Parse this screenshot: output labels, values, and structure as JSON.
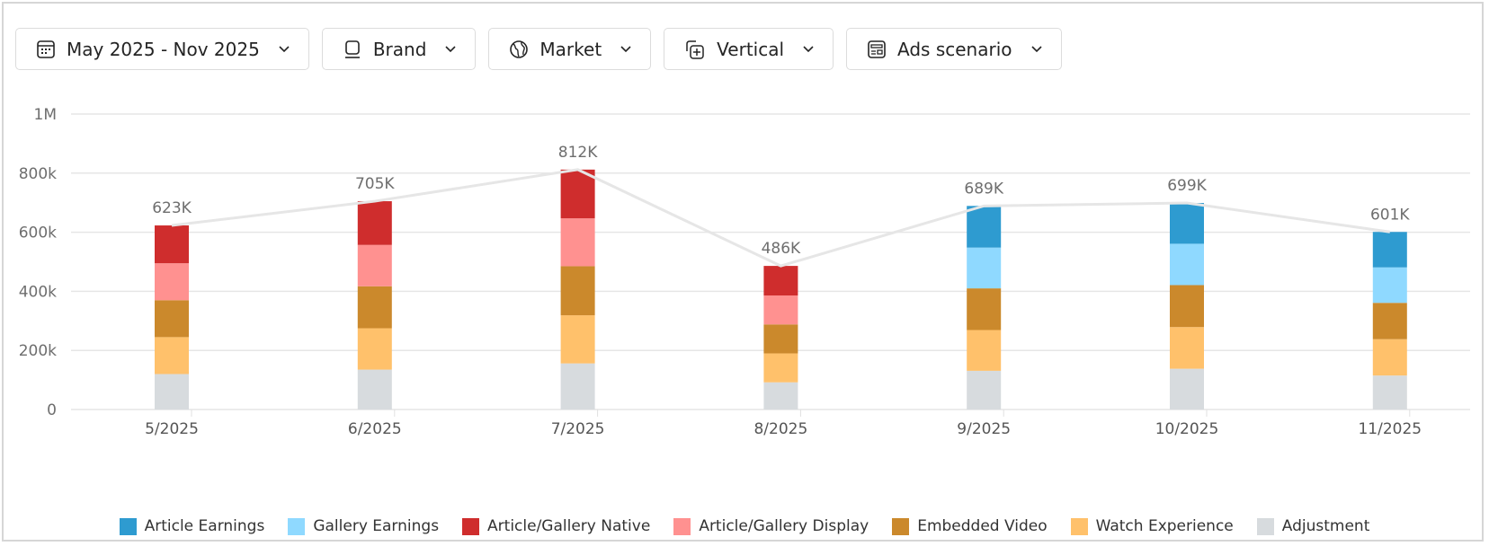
{
  "filters": [
    {
      "label": "May 2025 - Nov 2025",
      "icon": "calendar-icon"
    },
    {
      "label": "Brand",
      "icon": "tag-icon"
    },
    {
      "label": "Market",
      "icon": "globe-icon"
    },
    {
      "label": "Vertical",
      "icon": "add-square-multiple-icon"
    },
    {
      "label": "Ads scenario",
      "icon": "layout-icon"
    }
  ],
  "chart_data": {
    "type": "bar",
    "stacked": true,
    "categories": [
      "5/2025",
      "6/2025",
      "7/2025",
      "8/2025",
      "9/2025",
      "10/2025",
      "11/2025"
    ],
    "ylim": [
      0,
      1000000
    ],
    "yticks": [
      {
        "v": 0,
        "label": "0"
      },
      {
        "v": 200000,
        "label": "200k"
      },
      {
        "v": 400000,
        "label": "400k"
      },
      {
        "v": 600000,
        "label": "600k"
      },
      {
        "v": 800000,
        "label": "800k"
      },
      {
        "v": 1000000,
        "label": "1M"
      }
    ],
    "grid": true,
    "legend_position": "bottom",
    "series": [
      {
        "name": "Adjustment",
        "color": "#d7dbde",
        "values": [
          120000,
          135000,
          156000,
          92000,
          131000,
          138000,
          115000
        ]
      },
      {
        "name": "Watch Experience",
        "color": "#ffc16b",
        "values": [
          125000,
          140000,
          163000,
          98000,
          138000,
          141000,
          123000
        ]
      },
      {
        "name": "Embedded Video",
        "color": "#cb892c",
        "values": [
          125000,
          142000,
          166000,
          98000,
          141000,
          142000,
          123000
        ]
      },
      {
        "name": "Article/Gallery Display",
        "color": "#ff9190",
        "values": [
          125000,
          140000,
          162000,
          98000,
          0,
          0,
          0
        ]
      },
      {
        "name": "Article/Gallery Native",
        "color": "#cf2d2d",
        "values": [
          128000,
          148000,
          165000,
          100000,
          0,
          0,
          0
        ]
      },
      {
        "name": "Gallery Earnings",
        "color": "#8fd9ff",
        "values": [
          0,
          0,
          0,
          0,
          138000,
          140000,
          120000
        ]
      },
      {
        "name": "Article Earnings",
        "color": "#2e9bd0",
        "values": [
          0,
          0,
          0,
          0,
          141000,
          138000,
          120000
        ]
      }
    ],
    "totals": [
      623000,
      705000,
      812000,
      486000,
      689000,
      699000,
      601000
    ],
    "total_labels": [
      "623K",
      "705K",
      "812K",
      "486K",
      "689K",
      "699K",
      "601K"
    ],
    "total_line_color": "#e6e6e6"
  },
  "legend": [
    {
      "name": "Article Earnings",
      "color": "#2e9bd0"
    },
    {
      "name": "Gallery Earnings",
      "color": "#8fd9ff"
    },
    {
      "name": "Article/Gallery Native",
      "color": "#cf2d2d"
    },
    {
      "name": "Article/Gallery Display",
      "color": "#ff9190"
    },
    {
      "name": "Embedded Video",
      "color": "#cb892c"
    },
    {
      "name": "Watch Experience",
      "color": "#ffc16b"
    },
    {
      "name": "Adjustment",
      "color": "#d7dbde"
    }
  ]
}
